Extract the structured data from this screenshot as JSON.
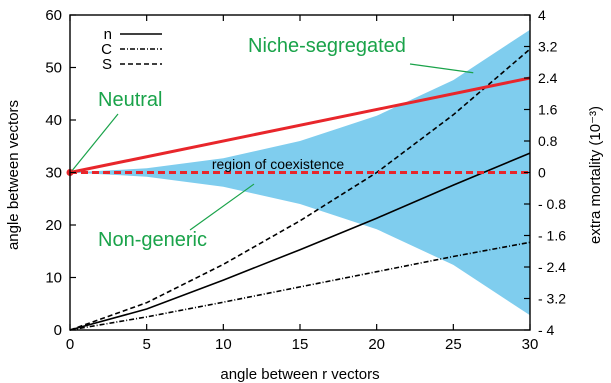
{
  "chart_data": {
    "type": "line",
    "xlabel": "angle between r vectors",
    "ylabel": "angle between vectors",
    "y2label": "extra mortality (10⁻³)",
    "xlim": [
      0,
      30
    ],
    "ylim": [
      0,
      60
    ],
    "y2lim": [
      -4,
      4
    ],
    "x_ticks": [
      0,
      5,
      10,
      15,
      20,
      25,
      30
    ],
    "y_ticks": [
      0,
      10,
      20,
      30,
      40,
      50,
      60
    ],
    "y2_ticks": [
      -4,
      -3.2,
      -2.4,
      -1.6,
      -0.8,
      0,
      0.8,
      1.6,
      2.4,
      3.2,
      4
    ],
    "y2_tick_labels": [
      "- 4",
      "- 3.2",
      "- 2.4",
      "- 1.6",
      "- 0.8",
      "0",
      "0.8",
      "1.6",
      "2.4",
      "3.2",
      "4"
    ],
    "grid": false,
    "legend": {
      "position": "top-left",
      "entries": [
        {
          "label": "n",
          "style": "solid"
        },
        {
          "label": "C",
          "style": "dashdot"
        },
        {
          "label": "S",
          "style": "dashed"
        }
      ]
    },
    "series": [
      {
        "name": "n",
        "axis": "left",
        "color": "#000000",
        "style": "solid",
        "x": [
          0,
          5,
          10,
          15,
          20,
          25,
          30
        ],
        "y": [
          0,
          4,
          9.5,
          15.3,
          21.3,
          27.6,
          33.7
        ]
      },
      {
        "name": "C",
        "axis": "left",
        "color": "#000000",
        "style": "dashdot",
        "x": [
          0,
          5,
          10,
          15,
          20,
          25,
          30
        ],
        "y": [
          0,
          2.5,
          5.3,
          8.2,
          11.1,
          14,
          16.7
        ]
      },
      {
        "name": "S",
        "axis": "left",
        "color": "#000000",
        "style": "dashed",
        "x": [
          0,
          5,
          10,
          15,
          20,
          25,
          30
        ],
        "y": [
          0,
          5.2,
          12.5,
          20.8,
          30,
          41,
          53.5
        ]
      },
      {
        "axis": "left",
        "color": "#e8262b",
        "style": "solid",
        "x": [
          0,
          30
        ],
        "y": [
          30,
          48
        ]
      },
      {
        "axis": "left",
        "color": "#e8262b",
        "style": "dashed",
        "x": [
          0,
          30
        ],
        "y": [
          30,
          30
        ]
      }
    ],
    "band": {
      "color": "#7fcdee",
      "x": [
        0,
        5,
        10,
        15,
        20,
        25,
        30
      ],
      "upper": [
        30,
        30.8,
        32.7,
        36,
        40.8,
        47.6,
        57.2
      ],
      "lower": [
        30,
        29.2,
        27.3,
        24,
        19.2,
        12.4,
        2.8
      ]
    },
    "annotations": [
      {
        "text": "Niche-segregated",
        "color": "#1aa34a"
      },
      {
        "text": "Neutral",
        "color": "#1aa34a"
      },
      {
        "text": "Non-generic",
        "color": "#1aa34a"
      },
      {
        "text": "region of coexistence",
        "color": "#000000"
      }
    ]
  }
}
